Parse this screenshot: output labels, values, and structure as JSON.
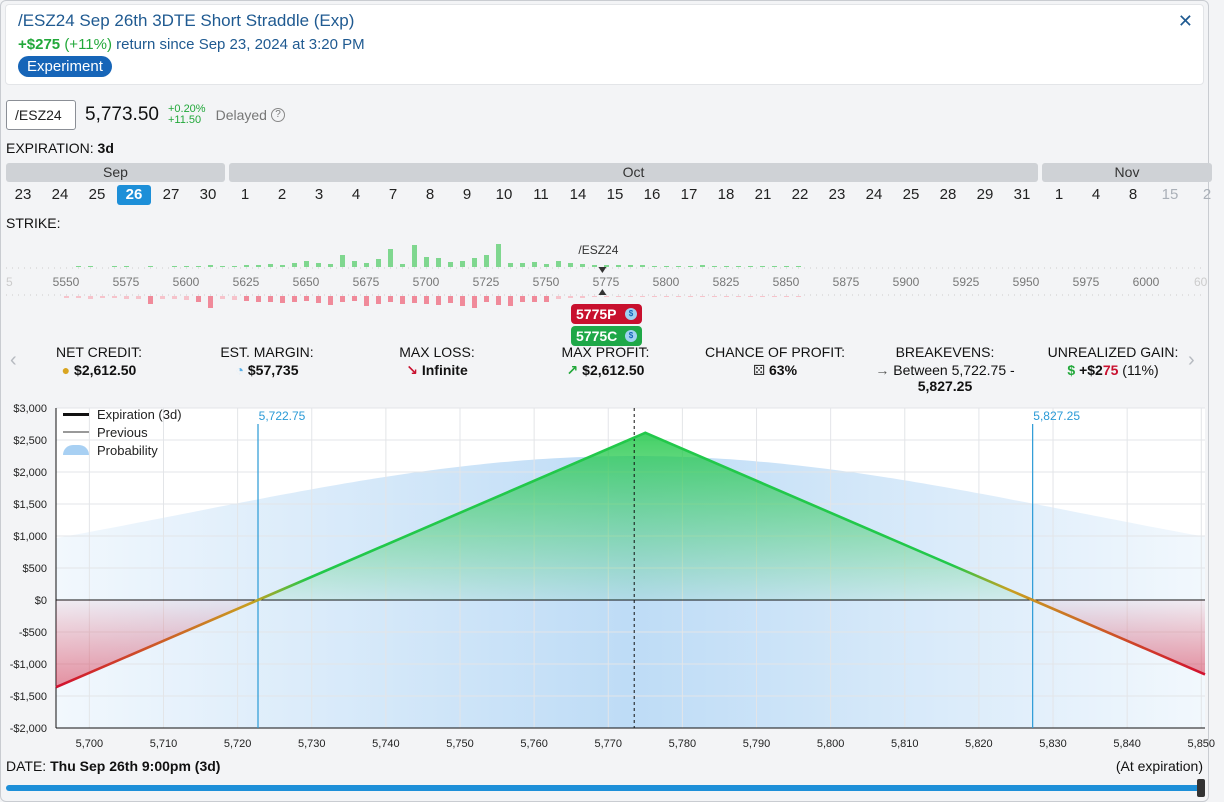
{
  "header": {
    "title": "/ESZ24 Sep 26th 3DTE Short Straddle (Exp)",
    "return_gain": "+$275",
    "return_pct": "(+11%)",
    "return_text": "return since Sep 23, 2024 at 3:20 PM",
    "badge": "Experiment",
    "close_glyph": "✕"
  },
  "quote": {
    "symbol": "/ESZ24",
    "price": "5,773.50",
    "change_pct": "+0.20%",
    "change_abs": "+11.50",
    "delayed": "Delayed"
  },
  "expiration": {
    "label": "EXPIRATION:",
    "value": "3d",
    "months": [
      "Sep",
      "Oct",
      "Nov"
    ],
    "days": [
      "23",
      "24",
      "25",
      "26",
      "27",
      "30",
      "1",
      "2",
      "3",
      "4",
      "7",
      "8",
      "9",
      "10",
      "11",
      "14",
      "15",
      "16",
      "17",
      "18",
      "21",
      "22",
      "23",
      "24",
      "25",
      "28",
      "29",
      "31",
      "1",
      "4",
      "8",
      "15",
      "2"
    ],
    "selected_index": 3
  },
  "strike": {
    "label": "STRIKE:",
    "underlying_marker": "/ESZ24",
    "ticks": [
      "5550",
      "5575",
      "5600",
      "5625",
      "5650",
      "5675",
      "5700",
      "5725",
      "5750",
      "5775",
      "5800",
      "5825",
      "5850",
      "5875",
      "5900",
      "5925",
      "5950",
      "5975",
      "6000"
    ],
    "edge_left": "5",
    "edge_right": "60"
  },
  "positions": {
    "put": "5775P",
    "call": "5775C",
    "coin_glyph": "$"
  },
  "stats": {
    "net_credit_label": "NET CREDIT:",
    "net_credit": "$2,612.50",
    "margin_label": "EST. MARGIN:",
    "margin": "$57,735",
    "max_loss_label": "MAX LOSS:",
    "max_loss": "Infinite",
    "max_profit_label": "MAX PROFIT:",
    "max_profit": "$2,612.50",
    "chance_label": "CHANCE OF PROFIT:",
    "chance": "63%",
    "breakevens_label": "BREAKEVENS:",
    "breakevens_line1": "Between 5,722.75 -",
    "breakevens_line2": "5,827.25",
    "unrealized_label": "UNREALIZED GAIN:",
    "unrealized_prefix": "+$2",
    "unrealized_red": "75",
    "unrealized_pct": "(11%)"
  },
  "legend": {
    "expiration": "Expiration (3d)",
    "previous": "Previous",
    "probability": "Probability"
  },
  "colors": {
    "accent": "#1d8fd8",
    "profit": "#22c84a",
    "loss": "#d2102f",
    "probability": "#a8d0f3"
  },
  "chart_data": {
    "type": "line",
    "title": "",
    "xlabel": "",
    "ylabel": "",
    "xlim": [
      5695.5,
      5850.5
    ],
    "ylim": [
      -2000,
      3000
    ],
    "x_ticks": [
      5700,
      5710,
      5720,
      5730,
      5740,
      5750,
      5760,
      5770,
      5780,
      5790,
      5800,
      5810,
      5820,
      5830,
      5840,
      5850
    ],
    "y_ticks": [
      -2000,
      -1500,
      -1000,
      -500,
      0,
      500,
      1000,
      1500,
      2000,
      2500,
      3000
    ],
    "x_tick_labels": [
      "5,700",
      "5,710",
      "5,720",
      "5,730",
      "5,740",
      "5,750",
      "5,760",
      "5,770",
      "5,780",
      "5,790",
      "5,800",
      "5,810",
      "5,820",
      "5,830",
      "5,840",
      "5,850"
    ],
    "y_tick_labels": [
      "-$2,000",
      "-$1,500",
      "-$1,000",
      "-$500",
      "$0",
      "$500",
      "$1,000",
      "$1,500",
      "$2,000",
      "$2,500",
      "$3,000"
    ],
    "series": [
      {
        "name": "Expiration (3d)",
        "x": [
          5695.5,
          5722.75,
          5775,
          5827.25,
          5850.5
        ],
        "y": [
          -1362.5,
          0,
          2612.5,
          0,
          -1162.5
        ]
      }
    ],
    "breakevens": [
      5722.75,
      5827.25
    ],
    "breakeven_labels": [
      "5,722.75",
      "5,827.25"
    ],
    "current_price": 5773.5,
    "probability_peak": 2250,
    "grid": true,
    "legend_position": "top-left"
  },
  "footer": {
    "date_label": "DATE:",
    "date_value": "Thu Sep 26th 9:00pm (3d)",
    "at_expiration": "(At expiration)"
  }
}
